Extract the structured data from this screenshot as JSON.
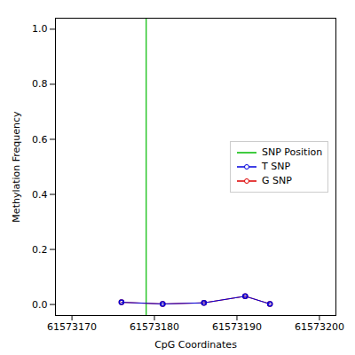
{
  "chart_data": {
    "type": "line",
    "xlabel": "CpG Coordinates",
    "ylabel": "Methylation Frequency",
    "x": [
      61573176,
      61573181,
      61573186,
      61573191,
      61573194
    ],
    "series": [
      {
        "name": "T SNP",
        "color": "#0000dd",
        "marker": "circle",
        "values": [
          0.008,
          0.002,
          0.006,
          0.03,
          0.002
        ]
      },
      {
        "name": "G SNP",
        "color": "#dd0000",
        "marker": "circle",
        "values": [
          0.008,
          0.002,
          0.006,
          0.03,
          0.002
        ]
      }
    ],
    "vline": {
      "name": "SNP Position",
      "x": 61573179,
      "color": "#00bb00"
    },
    "xlim": [
      61573168,
      61573202
    ],
    "ylim": [
      -0.04,
      1.04
    ],
    "xticks": [
      61573170,
      61573180,
      61573190,
      61573200
    ],
    "yticks": [
      {
        "value": 0.0,
        "label": "0.0"
      },
      0.2,
      0.4,
      0.6,
      0.8,
      {
        "value": 1.0,
        "label": "1.0"
      }
    ],
    "grid": false,
    "legend": "center right"
  }
}
